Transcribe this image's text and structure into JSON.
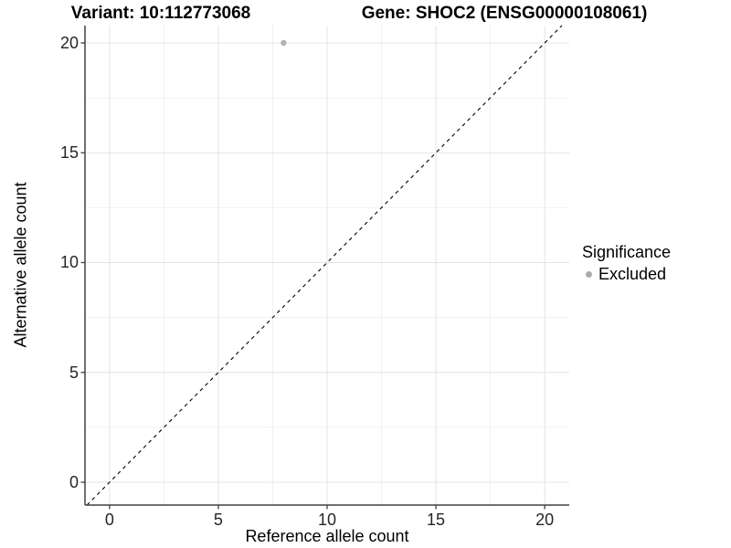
{
  "chart_data": {
    "type": "scatter",
    "title_left": "Variant: 10:112773068",
    "title_right": "Gene: SHOC2 (ENSG00000108061)",
    "xlabel": "Reference allele count",
    "ylabel": "Alternative allele count",
    "xlim": [
      -1.13,
      21.13
    ],
    "ylim": [
      -1.04,
      20.79
    ],
    "x_major_ticks": [
      0,
      5,
      10,
      15,
      20
    ],
    "y_major_ticks": [
      0,
      5,
      10,
      15,
      20
    ],
    "x_minor_ticks": [
      2.5,
      7.5,
      12.5,
      17.5
    ],
    "y_minor_ticks": [
      2.5,
      7.5,
      12.5,
      17.5
    ],
    "grid": true,
    "reference_line": {
      "type": "identity",
      "equation": "y = x",
      "style": "dashed",
      "color": "#000000"
    },
    "series": [
      {
        "name": "Excluded",
        "color": "#b3b3b3",
        "points": [
          {
            "x": 8,
            "y": 20
          }
        ]
      }
    ],
    "legend": {
      "title": "Significance",
      "position": "right",
      "entries": [
        {
          "label": "Excluded",
          "color": "#ababab"
        }
      ]
    },
    "style": {
      "background": "#ffffff",
      "major_grid_color": "#e4e4e4",
      "minor_grid_color": "#f1f1f1",
      "axis_line_color": "#404040",
      "tick_mark_color": "#404040",
      "tick_label_color": "#262626",
      "point_radius": 3.2,
      "legend_dot_color": "#ababab"
    }
  }
}
